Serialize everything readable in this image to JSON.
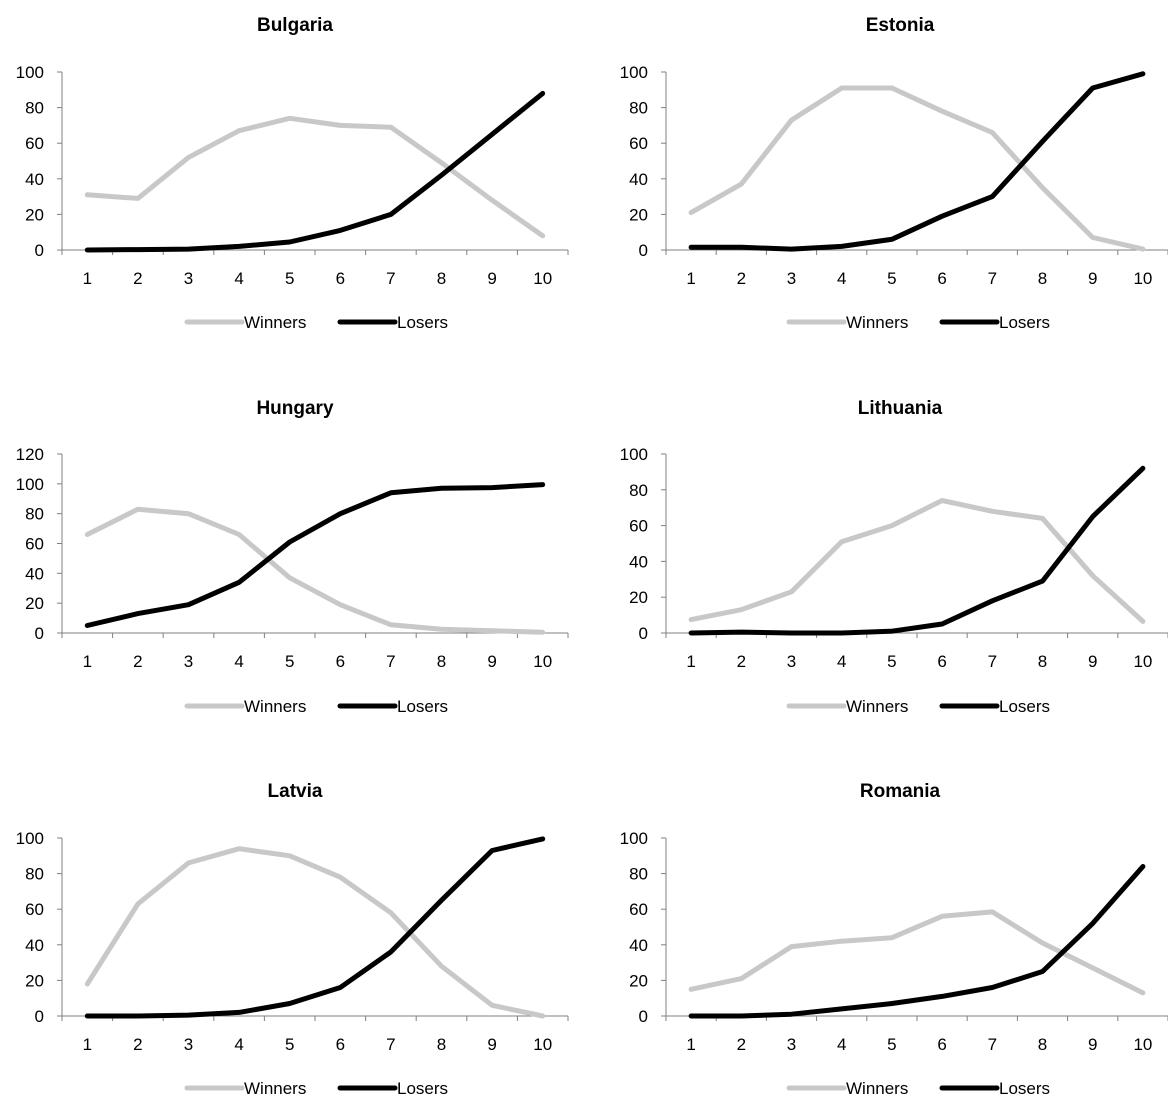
{
  "colors": {
    "winners": "#c8c8c8",
    "losers": "#000000",
    "axis": "#808080"
  },
  "chart_data": [
    {
      "type": "line",
      "title": "Bulgaria",
      "x": [
        1,
        2,
        3,
        4,
        5,
        6,
        7,
        8,
        9,
        10
      ],
      "ylim": [
        0,
        100
      ],
      "yticks": [
        0,
        20,
        40,
        60,
        80,
        100
      ],
      "legend_position": "bottom",
      "grid": false,
      "series": [
        {
          "name": "Winners",
          "values": [
            31,
            29,
            52,
            67,
            74,
            70,
            69,
            49,
            28,
            8
          ]
        },
        {
          "name": "Losers",
          "values": [
            0,
            0.2,
            0.5,
            2,
            4.5,
            11,
            20,
            42,
            65,
            88
          ]
        }
      ]
    },
    {
      "type": "line",
      "title": "Estonia",
      "x": [
        1,
        2,
        3,
        4,
        5,
        6,
        7,
        8,
        9,
        10
      ],
      "ylim": [
        0,
        100
      ],
      "yticks": [
        0,
        20,
        40,
        60,
        80,
        100
      ],
      "legend_position": "bottom",
      "grid": false,
      "series": [
        {
          "name": "Winners",
          "values": [
            21,
            37,
            73,
            91,
            91,
            78,
            66,
            35,
            7,
            0.5
          ]
        },
        {
          "name": "Losers",
          "values": [
            1.5,
            1.5,
            0.5,
            2,
            6,
            19,
            30,
            61,
            91,
            99
          ]
        }
      ]
    },
    {
      "type": "line",
      "title": "Hungary",
      "x": [
        1,
        2,
        3,
        4,
        5,
        6,
        7,
        8,
        9,
        10
      ],
      "ylim": [
        0,
        120
      ],
      "yticks": [
        0,
        20,
        40,
        60,
        80,
        100,
        120
      ],
      "legend_position": "bottom",
      "grid": false,
      "series": [
        {
          "name": "Winners",
          "values": [
            66,
            83,
            80,
            66,
            37,
            19,
            5.5,
            2.5,
            1.5,
            0.5
          ]
        },
        {
          "name": "Losers",
          "values": [
            5,
            13,
            19,
            34,
            61,
            80,
            94,
            97,
            97.5,
            99.5
          ]
        }
      ]
    },
    {
      "type": "line",
      "title": "Lithuania",
      "x": [
        1,
        2,
        3,
        4,
        5,
        6,
        7,
        8,
        9,
        10
      ],
      "ylim": [
        0,
        100
      ],
      "yticks": [
        0,
        20,
        40,
        60,
        80,
        100
      ],
      "legend_position": "bottom",
      "grid": false,
      "series": [
        {
          "name": "Winners",
          "values": [
            7.5,
            13,
            23,
            51,
            60,
            74,
            68,
            64,
            32,
            6.5
          ]
        },
        {
          "name": "Losers",
          "values": [
            0,
            0.5,
            0,
            0,
            1,
            5,
            18,
            29,
            65,
            92
          ]
        }
      ]
    },
    {
      "type": "line",
      "title": "Latvia",
      "x": [
        1,
        2,
        3,
        4,
        5,
        6,
        7,
        8,
        9,
        10
      ],
      "ylim": [
        0,
        100
      ],
      "yticks": [
        0,
        20,
        40,
        60,
        80,
        100
      ],
      "legend_position": "bottom",
      "grid": false,
      "series": [
        {
          "name": "Winners",
          "values": [
            18,
            63,
            86,
            94,
            90,
            78,
            58,
            28,
            6,
            0
          ]
        },
        {
          "name": "Losers",
          "values": [
            0,
            0,
            0.5,
            2,
            7,
            16,
            36,
            65,
            93,
            99.5
          ]
        }
      ]
    },
    {
      "type": "line",
      "title": "Romania",
      "x": [
        1,
        2,
        3,
        4,
        5,
        6,
        7,
        8,
        9,
        10
      ],
      "ylim": [
        0,
        100
      ],
      "yticks": [
        0,
        20,
        40,
        60,
        80,
        100
      ],
      "legend_position": "bottom",
      "grid": false,
      "series": [
        {
          "name": "Winners",
          "values": [
            15,
            21,
            39,
            42,
            44,
            56,
            58.5,
            41,
            27,
            13
          ]
        },
        {
          "name": "Losers",
          "values": [
            0,
            0,
            1,
            4,
            7,
            11,
            16,
            25,
            52,
            84
          ]
        }
      ]
    }
  ]
}
